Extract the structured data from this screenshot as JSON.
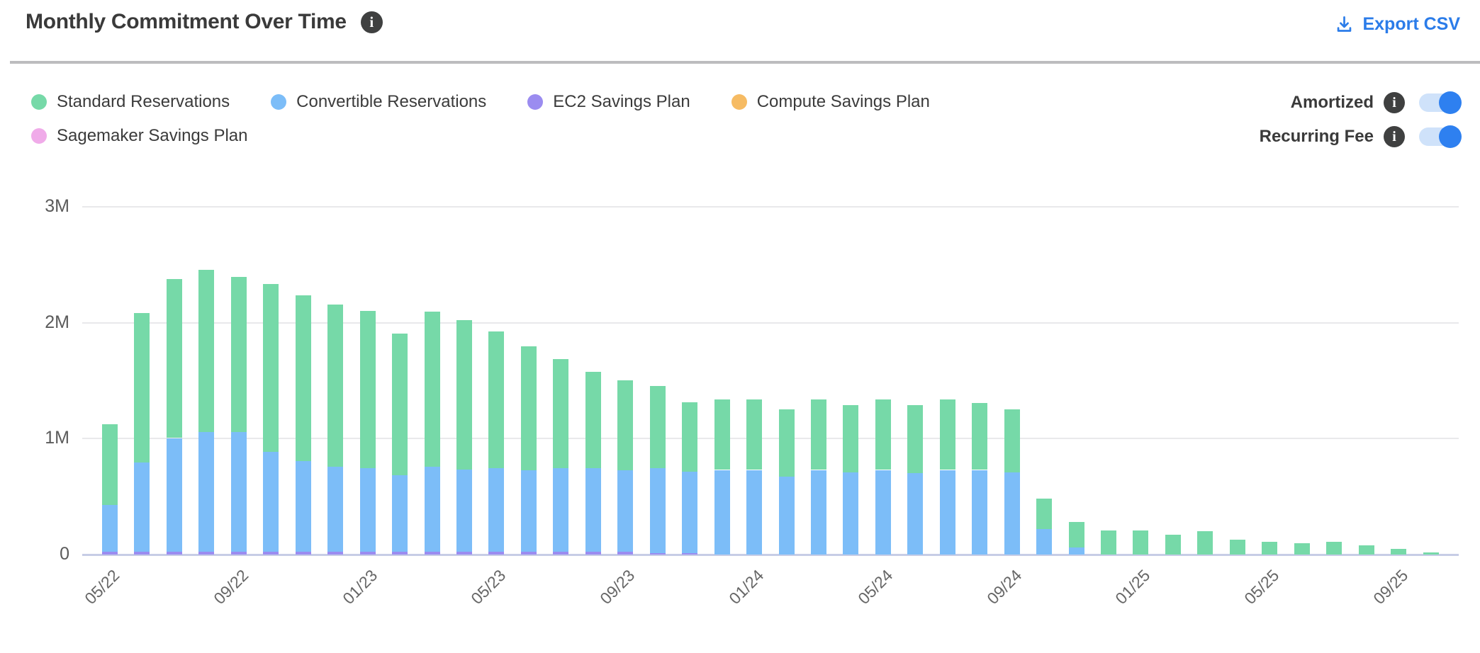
{
  "header": {
    "title": "Monthly Commitment Over Time",
    "export_label": "Export CSV"
  },
  "icons": {
    "info_glyph": "i"
  },
  "toggles": {
    "amortized": {
      "label": "Amortized",
      "state": "on"
    },
    "recurring_fee": {
      "label": "Recurring Fee",
      "state": "on"
    }
  },
  "colors": {
    "title_text": "#3a3a3a",
    "export_link": "#2b7ce9",
    "info_icon_bg": "#3f4040",
    "toggle_on": "#2e80f0",
    "toggle_track": "#cfe2fa",
    "divider": "#bcbcbe",
    "grid_line": "#e9e9eb",
    "axis_line": "#c7cde6",
    "axis_text": "#666666",
    "standard_reservations": "#76d9a8",
    "convertible_reservations": "#7cbdf8",
    "ec2_savings_plan": "#9b8cf0",
    "compute_savings_plan": "#f6bb63",
    "sagemaker_savings_plan": "#f0abe9"
  },
  "legend": {
    "items": [
      {
        "label": "Standard Reservations",
        "color": "#76d9a8"
      },
      {
        "label": "Convertible Reservations",
        "color": "#7cbdf8"
      },
      {
        "label": "EC2 Savings Plan",
        "color": "#9b8cf0"
      },
      {
        "label": "Compute Savings Plan",
        "color": "#f6bb63"
      },
      {
        "label": "Sagemaker Savings Plan",
        "color": "#f0abe9"
      }
    ]
  },
  "chart_data": {
    "type": "bar",
    "stacked": true,
    "title": "Monthly Commitment Over Time",
    "unit": "millions USD",
    "grid": "horizontal",
    "legend_position": "top-left",
    "ylim": [
      0,
      3
    ],
    "y_ticks": [
      {
        "value": 0,
        "label": "0"
      },
      {
        "value": 1,
        "label": "1M"
      },
      {
        "value": 2,
        "label": "2M"
      },
      {
        "value": 3,
        "label": "3M"
      }
    ],
    "x_tick_every": 4,
    "x_ticks_shown": [
      "05/22",
      "09/22",
      "01/23",
      "05/23",
      "09/23",
      "01/24",
      "05/24",
      "09/24",
      "01/25",
      "05/25",
      "09/25"
    ],
    "categories": [
      "05/22",
      "06/22",
      "07/22",
      "08/22",
      "09/22",
      "10/22",
      "11/22",
      "12/22",
      "01/23",
      "02/23",
      "03/23",
      "04/23",
      "05/23",
      "06/23",
      "07/23",
      "08/23",
      "09/23",
      "10/23",
      "11/23",
      "12/23",
      "01/24",
      "02/24",
      "03/24",
      "04/24",
      "05/24",
      "06/24",
      "07/24",
      "08/24",
      "09/24",
      "10/24",
      "11/24",
      "12/24",
      "01/25",
      "02/25",
      "03/25",
      "04/25",
      "05/25",
      "06/25",
      "07/25",
      "08/25",
      "09/25",
      "10/25"
    ],
    "series": [
      {
        "name": "EC2 Savings Plan",
        "color": "#9b8cf0",
        "values": [
          0.025,
          0.025,
          0.025,
          0.025,
          0.025,
          0.025,
          0.025,
          0.025,
          0.025,
          0.025,
          0.025,
          0.025,
          0.025,
          0.025,
          0.025,
          0.025,
          0.025,
          0.015,
          0.015,
          0,
          0,
          0,
          0,
          0,
          0,
          0,
          0,
          0,
          0,
          0,
          0,
          0,
          0,
          0,
          0,
          0,
          0,
          0,
          0,
          0,
          0,
          0
        ]
      },
      {
        "name": "Convertible Reservations",
        "color": "#7cbdf8",
        "values": [
          0.4,
          0.77,
          0.98,
          1.03,
          1.03,
          0.86,
          0.78,
          0.73,
          0.72,
          0.66,
          0.73,
          0.71,
          0.72,
          0.7,
          0.72,
          0.72,
          0.7,
          0.73,
          0.7,
          0.73,
          0.73,
          0.67,
          0.73,
          0.71,
          0.73,
          0.7,
          0.73,
          0.73,
          0.71,
          0.22,
          0.06,
          0,
          0,
          0,
          0,
          0,
          0,
          0,
          0,
          0,
          0,
          0
        ]
      },
      {
        "name": "Standard Reservations",
        "color": "#76d9a8",
        "values": [
          0.7,
          1.29,
          1.37,
          1.4,
          1.34,
          1.45,
          1.43,
          1.4,
          1.36,
          1.22,
          1.34,
          1.29,
          1.18,
          1.07,
          0.94,
          0.83,
          0.78,
          0.71,
          0.6,
          0.61,
          0.61,
          0.58,
          0.61,
          0.58,
          0.61,
          0.59,
          0.61,
          0.58,
          0.54,
          0.26,
          0.22,
          0.21,
          0.21,
          0.17,
          0.2,
          0.13,
          0.11,
          0.1,
          0.11,
          0.08,
          0.05,
          0.02
        ]
      },
      {
        "name": "Compute Savings Plan",
        "color": "#f6bb63",
        "values": [
          0,
          0,
          0,
          0,
          0,
          0,
          0,
          0,
          0,
          0,
          0,
          0,
          0,
          0,
          0,
          0,
          0,
          0,
          0,
          0,
          0,
          0,
          0,
          0,
          0,
          0,
          0,
          0,
          0,
          0,
          0,
          0,
          0,
          0,
          0,
          0,
          0,
          0,
          0,
          0,
          0,
          0
        ]
      },
      {
        "name": "Sagemaker Savings Plan",
        "color": "#f0abe9",
        "values": [
          0,
          0,
          0,
          0,
          0,
          0,
          0,
          0,
          0,
          0,
          0,
          0,
          0,
          0,
          0,
          0,
          0,
          0,
          0,
          0,
          0,
          0,
          0,
          0,
          0,
          0,
          0,
          0,
          0,
          0,
          0,
          0,
          0,
          0,
          0,
          0,
          0,
          0,
          0,
          0,
          0,
          0
        ]
      }
    ]
  }
}
